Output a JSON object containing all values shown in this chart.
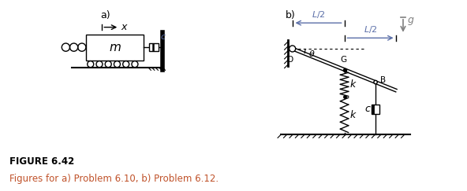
{
  "fig_label": "FIGURE 6.42",
  "fig_caption": "Figures for a) Problem 6.10, b) Problem 6.12.",
  "label_color": "#000000",
  "caption_color": "#c0522a",
  "bg_color": "#ffffff",
  "panel_a_label": "a)",
  "panel_b_label": "b)",
  "italic_color": "#5b6fa8",
  "gray_color": "#808080"
}
